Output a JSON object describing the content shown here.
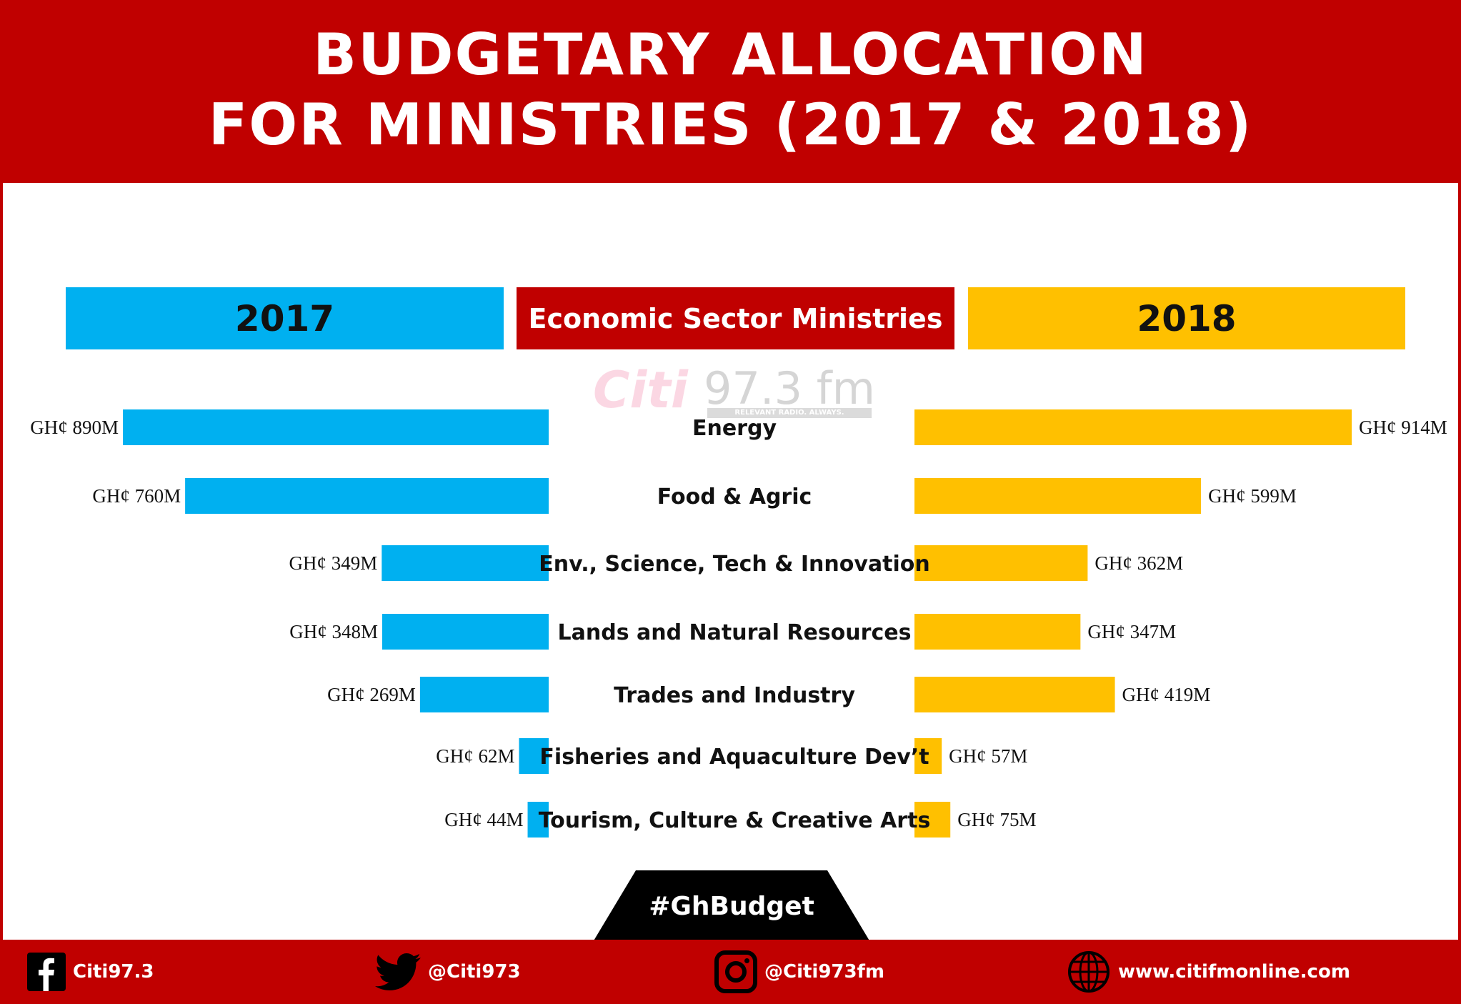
{
  "title": {
    "line1": "BUDGETARY ALLOCATION",
    "line2": "FOR MINISTRIES (2017 & 2018)"
  },
  "headers": {
    "left": "2017",
    "center": "Economic Sector Ministries",
    "right": "2018"
  },
  "watermark": {
    "logo": "Citi",
    "frequency": "97.3 fm",
    "tagline": "RELEVANT RADIO. ALWAYS."
  },
  "chart_data": {
    "type": "bar",
    "orientation": "horizontal-butterfly",
    "categories": [
      "Energy",
      "Food & Agric",
      "Env., Science, Tech & Innovation",
      "Lands and Natural Resources",
      "Trades and Industry",
      "Fisheries and Aquaculture Dev’t",
      "Tourism, Culture & Creative Arts"
    ],
    "unit": "GH¢ M",
    "series": [
      {
        "name": "2017",
        "side": "left",
        "color": "#00b0f0",
        "values": [
          890,
          760,
          349,
          348,
          269,
          62,
          44
        ],
        "labels": [
          "GH¢ 890M",
          "GH¢ 760M",
          "GH¢ 349M",
          "GH¢ 348M",
          "GH¢ 269M",
          "GH¢ 62M",
          "GH¢ 44M"
        ]
      },
      {
        "name": "2018",
        "side": "right",
        "color": "#ffc000",
        "values": [
          914,
          599,
          362,
          347,
          419,
          57,
          75
        ],
        "labels": [
          "GH¢ 914M",
          "GH¢ 599M",
          "GH¢ 362M",
          "GH¢ 347M",
          "GH¢ 419M",
          "GH¢ 57M",
          "GH¢ 75M"
        ]
      }
    ],
    "xlim": [
      0,
      914
    ],
    "grid": false,
    "legend": "top (column headers)"
  },
  "hashtag": "#GhBudget",
  "footer": {
    "facebook": "Citi97.3",
    "twitter": "@Citi973",
    "instagram": "@Citi973fm",
    "website": "www.citifmonline.com"
  },
  "colors": {
    "brand_red": "#c00000",
    "blue_2017": "#00b0f0",
    "gold_2018": "#ffc000"
  }
}
